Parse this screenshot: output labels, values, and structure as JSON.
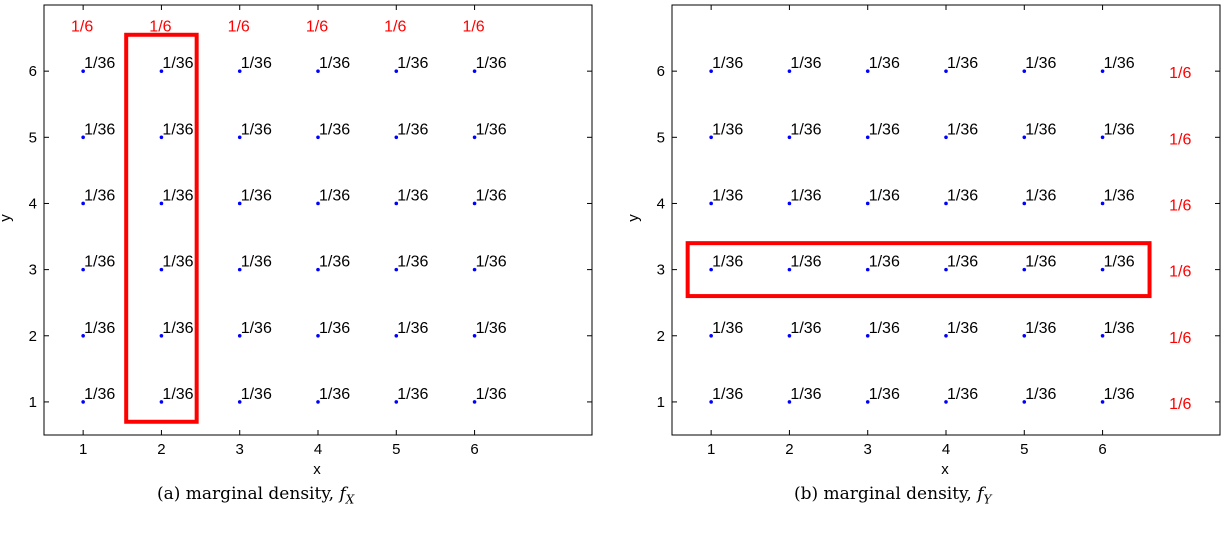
{
  "figure": {
    "captions": [
      {
        "prefix": "(a)  marginal density,  ",
        "math": "f",
        "sub": "X"
      },
      {
        "prefix": "(b)  marginal density,  ",
        "math": "f",
        "sub": "Y"
      }
    ]
  },
  "colors": {
    "point": "#0000ff",
    "highlight": "#ff0000",
    "marginal_text": "#ff0000",
    "axis": "#000000"
  },
  "chart_data": [
    {
      "type": "scatter",
      "title": "",
      "xlabel": "x",
      "ylabel": "y",
      "xlim": [
        0.5,
        7.5
      ],
      "ylim": [
        0.5,
        7.0
      ],
      "xticks": [
        1,
        2,
        3,
        4,
        5,
        6
      ],
      "yticks": [
        1,
        2,
        3,
        4,
        5,
        6
      ],
      "x": [
        1,
        2,
        3,
        4,
        5,
        6
      ],
      "y": [
        1,
        2,
        3,
        4,
        5,
        6
      ],
      "point_label": "1/36",
      "marginal": {
        "axis": "x",
        "values": [
          "1/6",
          "1/6",
          "1/6",
          "1/6",
          "1/6",
          "1/6"
        ]
      },
      "highlight": {
        "description": "column",
        "x": [
          1.55,
          2.45
        ],
        "y": [
          0.7,
          6.55
        ]
      }
    },
    {
      "type": "scatter",
      "title": "",
      "xlabel": "x",
      "ylabel": "y",
      "xlim": [
        0.5,
        7.5
      ],
      "ylim": [
        0.5,
        7.0
      ],
      "xticks": [
        1,
        2,
        3,
        4,
        5,
        6
      ],
      "yticks": [
        1,
        2,
        3,
        4,
        5,
        6
      ],
      "x": [
        1,
        2,
        3,
        4,
        5,
        6
      ],
      "y": [
        1,
        2,
        3,
        4,
        5,
        6
      ],
      "point_label": "1/36",
      "marginal": {
        "axis": "y",
        "values": [
          "1/6",
          "1/6",
          "1/6",
          "1/6",
          "1/6",
          "1/6"
        ]
      },
      "highlight": {
        "description": "row",
        "x": [
          0.7,
          6.6
        ],
        "y": [
          2.6,
          3.4
        ]
      }
    }
  ]
}
